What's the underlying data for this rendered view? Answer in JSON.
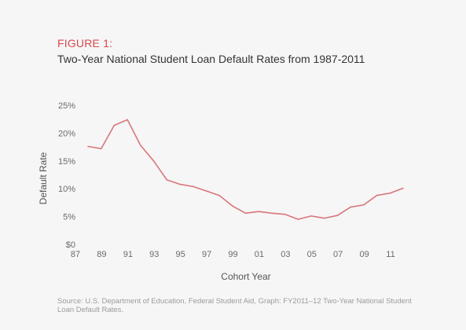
{
  "figure_label": "FIGURE 1:",
  "source": "Source: U.S. Department of Education, Federal Student Aid, Graph: FY2011–12 Two-Year National Student Loan Default Rates.",
  "chart_data": {
    "type": "line",
    "title": "Two-Year National Student Loan Default Rates from 1987-2011",
    "xlabel": "Cohort Year",
    "ylabel": "Default Rate",
    "x": [
      1987,
      1988,
      1989,
      1990,
      1991,
      1992,
      1993,
      1994,
      1995,
      1996,
      1997,
      1998,
      1999,
      2000,
      2001,
      2002,
      2003,
      2004,
      2005,
      2006,
      2007,
      2008,
      2009,
      2010,
      2011
    ],
    "series": [
      {
        "values": [
          17.6,
          17.2,
          21.4,
          22.4,
          17.8,
          15.0,
          11.6,
          10.8,
          10.4,
          9.6,
          8.8,
          6.9,
          5.6,
          5.9,
          5.6,
          5.4,
          4.5,
          5.1,
          4.7,
          5.2,
          6.7,
          7.1,
          8.8,
          9.2,
          10.1
        ]
      }
    ],
    "xticks": [
      "87",
      "89",
      "91",
      "93",
      "95",
      "97",
      "99",
      "01",
      "03",
      "05",
      "07",
      "09",
      "11"
    ],
    "yticks": [
      "$0",
      "5%",
      "10%",
      "15%",
      "20%",
      "25%"
    ],
    "ylim": [
      0,
      25
    ],
    "xlim": [
      1987,
      2011
    ],
    "grid": false,
    "line_color": "#d9767a"
  }
}
